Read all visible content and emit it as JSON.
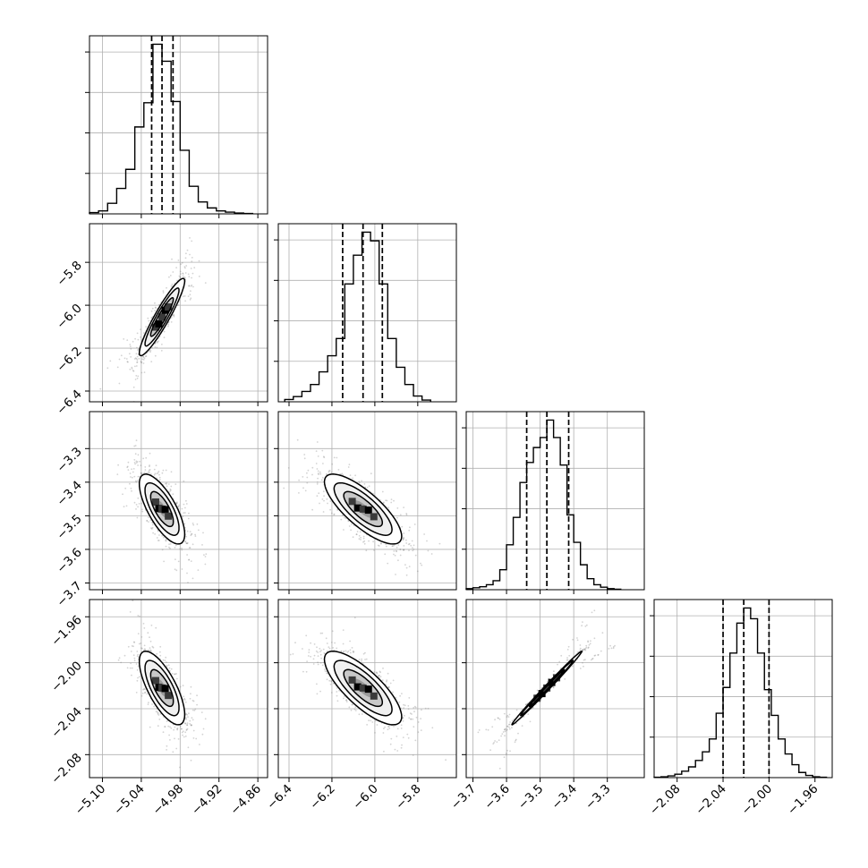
{
  "chart_data": {
    "type": "corner",
    "parameters": [
      {
        "index": 0,
        "range": [
          -5.12,
          -4.845
        ],
        "ticks": [
          -5.1,
          -5.04,
          -4.98,
          -4.92,
          -4.86
        ],
        "tick_labels": [
          "−5.10",
          "−5.04",
          "−4.98",
          "−4.92",
          "−4.86"
        ],
        "quantiles": [
          -5.024,
          -5.008,
          -4.991
        ],
        "hist_edges": [
          -5.12,
          -5.106,
          -5.092,
          -5.078,
          -5.064,
          -5.05,
          -5.036,
          -5.022,
          -5.008,
          -4.994,
          -4.98,
          -4.966,
          -4.952,
          -4.938,
          -4.924,
          -4.91,
          -4.896,
          -4.882,
          -4.868
        ],
        "hist_counts": [
          3,
          7,
          25,
          60,
          105,
          205,
          262,
          400,
          360,
          265,
          150,
          65,
          28,
          14,
          7,
          4,
          2,
          1
        ]
      },
      {
        "index": 1,
        "range": [
          -6.45,
          -5.62
        ],
        "ticks": [
          -6.4,
          -6.2,
          -6.0,
          -5.8
        ],
        "tick_labels": [
          "−6.4",
          "−6.2",
          "−6.0",
          "−5.8"
        ],
        "quantiles": [
          -6.15,
          -6.055,
          -5.965
        ],
        "hist_edges": [
          -6.42,
          -6.38,
          -6.34,
          -6.3,
          -6.26,
          -6.22,
          -6.18,
          -6.14,
          -6.1,
          -6.06,
          -6.02,
          -5.98,
          -5.94,
          -5.9,
          -5.86,
          -5.82,
          -5.78,
          -5.74
        ],
        "hist_counts": [
          4,
          9,
          18,
          30,
          52,
          80,
          110,
          205,
          255,
          295,
          280,
          205,
          110,
          60,
          30,
          10,
          3
        ]
      },
      {
        "index": 2,
        "range": [
          -3.72,
          -3.19
        ],
        "ticks": [
          -3.7,
          -3.6,
          -3.5,
          -3.4,
          -3.3
        ],
        "tick_labels": [
          "−3.7",
          "−3.6",
          "−3.5",
          "−3.4",
          "−3.3"
        ],
        "quantiles": [
          -3.54,
          -3.48,
          -3.415
        ],
        "hist_edges": [
          -3.72,
          -3.7,
          -3.68,
          -3.66,
          -3.64,
          -3.62,
          -3.6,
          -3.58,
          -3.56,
          -3.54,
          -3.52,
          -3.5,
          -3.48,
          -3.46,
          -3.44,
          -3.42,
          -3.4,
          -3.38,
          -3.36,
          -3.34,
          -3.32,
          -3.3,
          -3.28,
          -3.26
        ],
        "hist_counts": [
          2,
          4,
          6,
          10,
          18,
          40,
          90,
          145,
          215,
          255,
          285,
          305,
          340,
          305,
          250,
          150,
          95,
          50,
          22,
          10,
          5,
          2,
          1
        ]
      },
      {
        "index": 3,
        "range": [
          -2.1,
          -1.945
        ],
        "ticks": [
          -2.08,
          -2.04,
          -2.0,
          -1.96
        ],
        "tick_labels": [
          "−2.08",
          "−2.04",
          "−2.00",
          "−1.96"
        ],
        "quantiles": [
          -2.04,
          -2.022,
          -2.0
        ],
        "hist_edges": [
          -2.1,
          -2.094,
          -2.088,
          -2.082,
          -2.076,
          -2.07,
          -2.064,
          -2.058,
          -2.052,
          -2.046,
          -2.04,
          -2.034,
          -2.028,
          -2.022,
          -2.016,
          -2.01,
          -2.004,
          -1.998,
          -1.992,
          -1.986,
          -1.98,
          -1.974,
          -1.968,
          -1.962,
          -1.956,
          -1.95
        ],
        "hist_counts": [
          1,
          2,
          4,
          8,
          15,
          25,
          40,
          60,
          90,
          150,
          210,
          290,
          360,
          395,
          370,
          290,
          205,
          145,
          90,
          55,
          30,
          12,
          5,
          2,
          1
        ]
      }
    ],
    "pairs": [
      {
        "x": 0,
        "y": 1,
        "mean": [
          -5.008,
          -6.055
        ],
        "std": [
          0.0175,
          0.09
        ],
        "corr": 0.93
      },
      {
        "x": 0,
        "y": 2,
        "mean": [
          -5.008,
          -3.48
        ],
        "std": [
          0.0175,
          0.052
        ],
        "corr": -0.72
      },
      {
        "x": 1,
        "y": 2,
        "mean": [
          -6.055,
          -3.48
        ],
        "std": [
          0.09,
          0.052
        ],
        "corr": -0.78
      },
      {
        "x": 0,
        "y": 3,
        "mean": [
          -5.008,
          -2.022
        ],
        "std": [
          0.0175,
          0.016
        ],
        "corr": -0.72
      },
      {
        "x": 1,
        "y": 3,
        "mean": [
          -6.055,
          -2.022
        ],
        "std": [
          0.09,
          0.016
        ],
        "corr": -0.78
      },
      {
        "x": 2,
        "y": 3,
        "mean": [
          -3.48,
          -2.022
        ],
        "std": [
          0.052,
          0.016
        ],
        "corr": 0.995
      }
    ],
    "contour_levels_sigma": [
      0.5,
      1.0,
      1.5,
      2.0
    ],
    "grid": true,
    "line_color": "#000000",
    "point_color": "#808080"
  }
}
